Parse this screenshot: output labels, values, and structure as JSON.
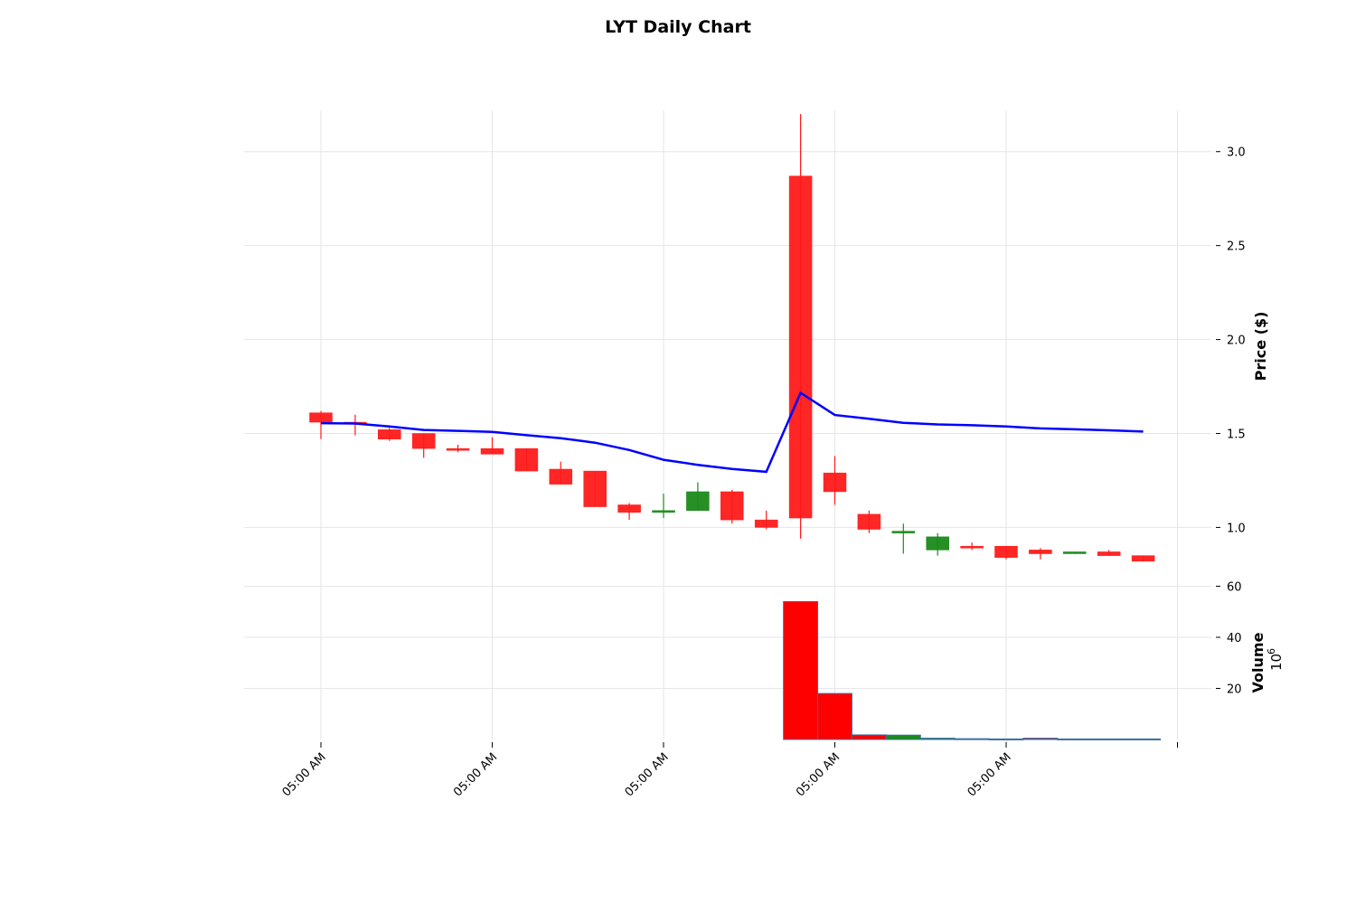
{
  "chart_data": {
    "type": "candlestick",
    "title": "LYT Daily Chart",
    "price_panel": {
      "ylabel": "Price ($)",
      "ylim": [
        0.8,
        3.22
      ],
      "yticks": [
        1.0,
        1.5,
        2.0,
        2.5,
        3.0
      ],
      "ytick_labels": [
        "1.0",
        "1.5",
        "2.0",
        "2.5",
        "3.0"
      ],
      "grid": true,
      "axis_side": "right"
    },
    "volume_panel": {
      "ylabel": "Volume",
      "scale_exponent_base": "10",
      "scale_exponent_power": "6",
      "ylim": [
        0,
        63
      ],
      "yticks": [
        20,
        40,
        60
      ],
      "ytick_labels": [
        "20",
        "40",
        "60"
      ],
      "grid": true,
      "axis_side": "right"
    },
    "x_tick_labels": [
      "05:00 AM",
      "05:00 AM",
      "05:00 AM",
      "05:00 AM",
      "05:00 AM"
    ],
    "up_color": "#1a8a1a",
    "down_color": "#ff1a1a",
    "moving_average_color": "#0000ff",
    "candles": [
      {
        "open": 1.61,
        "high": 1.62,
        "low": 1.47,
        "close": 1.56
      },
      {
        "open": 1.56,
        "high": 1.6,
        "low": 1.49,
        "close": 1.55
      },
      {
        "open": 1.52,
        "high": 1.53,
        "low": 1.46,
        "close": 1.47
      },
      {
        "open": 1.5,
        "high": 1.5,
        "low": 1.37,
        "close": 1.42
      },
      {
        "open": 1.42,
        "high": 1.44,
        "low": 1.4,
        "close": 1.41
      },
      {
        "open": 1.42,
        "high": 1.48,
        "low": 1.39,
        "close": 1.39
      },
      {
        "open": 1.42,
        "high": 1.42,
        "low": 1.3,
        "close": 1.3
      },
      {
        "open": 1.31,
        "high": 1.35,
        "low": 1.23,
        "close": 1.23
      },
      {
        "open": 1.3,
        "high": 1.3,
        "low": 1.11,
        "close": 1.11
      },
      {
        "open": 1.12,
        "high": 1.13,
        "low": 1.04,
        "close": 1.08
      },
      {
        "open": 1.08,
        "high": 1.18,
        "low": 1.05,
        "close": 1.09
      },
      {
        "open": 1.09,
        "high": 1.24,
        "low": 1.09,
        "close": 1.19
      },
      {
        "open": 1.19,
        "high": 1.2,
        "low": 1.02,
        "close": 1.04
      },
      {
        "open": 1.04,
        "high": 1.09,
        "low": 0.99,
        "close": 1.0
      },
      {
        "open": 2.87,
        "high": 3.2,
        "low": 0.94,
        "close": 1.05
      },
      {
        "open": 1.29,
        "high": 1.38,
        "low": 1.12,
        "close": 1.19
      },
      {
        "open": 1.07,
        "high": 1.09,
        "low": 0.97,
        "close": 0.99
      },
      {
        "open": 0.97,
        "high": 1.02,
        "low": 0.86,
        "close": 0.98
      },
      {
        "open": 0.88,
        "high": 0.97,
        "low": 0.85,
        "close": 0.95
      },
      {
        "open": 0.9,
        "high": 0.92,
        "low": 0.88,
        "close": 0.89
      },
      {
        "open": 0.9,
        "high": 0.9,
        "low": 0.83,
        "close": 0.84
      },
      {
        "open": 0.88,
        "high": 0.89,
        "low": 0.83,
        "close": 0.86
      },
      {
        "open": 0.86,
        "high": 0.87,
        "low": 0.86,
        "close": 0.87
      },
      {
        "open": 0.87,
        "high": 0.88,
        "low": 0.85,
        "close": 0.85
      },
      {
        "open": 0.85,
        "high": 0.85,
        "low": 0.82,
        "close": 0.82
      }
    ],
    "moving_average": [
      {
        "i": 0,
        "value": 1.555
      },
      {
        "i": 1,
        "value": 1.553
      },
      {
        "i": 2,
        "value": 1.537
      },
      {
        "i": 3,
        "value": 1.519
      },
      {
        "i": 4,
        "value": 1.514
      },
      {
        "i": 5,
        "value": 1.508
      },
      {
        "i": 6,
        "value": 1.491
      },
      {
        "i": 7,
        "value": 1.475
      },
      {
        "i": 8,
        "value": 1.451
      },
      {
        "i": 9,
        "value": 1.412
      },
      {
        "i": 10,
        "value": 1.36
      },
      {
        "i": 11,
        "value": 1.333
      },
      {
        "i": 12,
        "value": 1.311
      },
      {
        "i": 13,
        "value": 1.296
      },
      {
        "i": 14,
        "value": 1.716
      },
      {
        "i": 15,
        "value": 1.598
      },
      {
        "i": 16,
        "value": 1.578
      },
      {
        "i": 17,
        "value": 1.557
      },
      {
        "i": 18,
        "value": 1.548
      },
      {
        "i": 19,
        "value": 1.544
      },
      {
        "i": 20,
        "value": 1.537
      },
      {
        "i": 21,
        "value": 1.527
      },
      {
        "i": 22,
        "value": 1.522
      },
      {
        "i": 23,
        "value": 1.517
      },
      {
        "i": 24,
        "value": 1.51
      }
    ],
    "volume_bars": [
      {
        "start": 13.5,
        "value": 54.0,
        "direction": "down"
      },
      {
        "start": 14.5,
        "value": 18.0,
        "direction": "down"
      },
      {
        "start": 15.5,
        "value": 1.8,
        "direction": "down"
      },
      {
        "start": 16.5,
        "value": 1.7,
        "direction": "up"
      },
      {
        "start": 17.5,
        "value": 0.5,
        "direction": "up"
      },
      {
        "start": 18.5,
        "value": 0.3,
        "direction": "down"
      },
      {
        "start": 19.5,
        "value": 0.2,
        "direction": "down"
      },
      {
        "start": 20.5,
        "value": 0.5,
        "direction": "down"
      },
      {
        "start": 21.5,
        "value": 0.2,
        "direction": "up"
      },
      {
        "start": 22.5,
        "value": 0.2,
        "direction": "down"
      },
      {
        "start": 23.5,
        "value": 0.2,
        "direction": "down"
      }
    ]
  }
}
